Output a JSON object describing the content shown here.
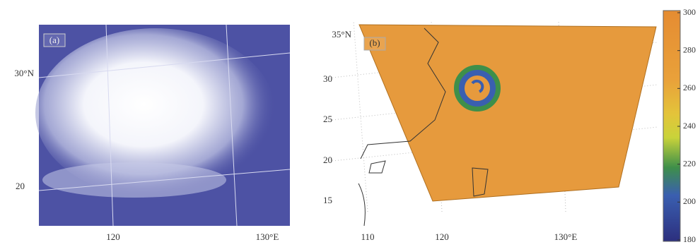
{
  "panel_a": {
    "label": "(a)",
    "lat_labels": [
      "30°N",
      "20"
    ],
    "lon_labels": [
      "120",
      "130°E"
    ]
  },
  "panel_b": {
    "label": "(b)",
    "lat_labels": [
      "35°N",
      "30",
      "25",
      "20",
      "15"
    ],
    "lon_labels": [
      "110",
      "120",
      "130°E"
    ]
  },
  "colorbar": {
    "ticks": [
      300,
      280,
      260,
      240,
      220,
      200,
      180
    ]
  }
}
